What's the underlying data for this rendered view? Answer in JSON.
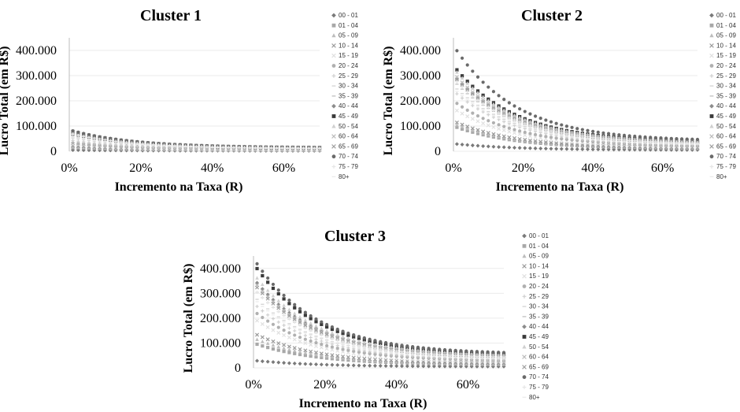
{
  "chart_data": [
    {
      "type": "scatter",
      "title": "Cluster 1",
      "xlabel": "Incremento na Taxa (R)",
      "ylabel": "Lucro Total (em R$)",
      "x_ticks": [
        "0%",
        "20%",
        "40%",
        "60%"
      ],
      "y_ticks": [
        "0",
        "100.000",
        "200.000",
        "300.000",
        "400.000"
      ],
      "xlim": [
        0,
        0.7
      ],
      "ylim": [
        0,
        450000
      ],
      "grid": "horizontal",
      "legend_position": "right",
      "series": [
        {
          "name": "00 - 01",
          "start": 5000,
          "k": 2.6,
          "end": 2000,
          "color": "#7a7a7a",
          "marker": "diamond"
        },
        {
          "name": "01 - 04",
          "start": 15000,
          "k": 2.6,
          "end": 4000,
          "color": "#a8a8a8",
          "marker": "square"
        },
        {
          "name": "05 - 09",
          "start": 18000,
          "k": 2.6,
          "end": 4500,
          "color": "#bdbdbd",
          "marker": "triangle"
        },
        {
          "name": "10 - 14",
          "start": 22000,
          "k": 2.6,
          "end": 5000,
          "color": "#9a9a9a",
          "marker": "x"
        },
        {
          "name": "15 - 19",
          "start": 30000,
          "k": 2.6,
          "end": 6000,
          "color": "#e0e0e0",
          "marker": "x"
        },
        {
          "name": "20 - 24",
          "start": 35000,
          "k": 2.6,
          "end": 7000,
          "color": "#b0b0b0",
          "marker": "circle"
        },
        {
          "name": "25 - 29",
          "start": 45000,
          "k": 2.6,
          "end": 8000,
          "color": "#cfcfcf",
          "marker": "plus"
        },
        {
          "name": "30 - 34",
          "start": 55000,
          "k": 2.6,
          "end": 9000,
          "color": "#d6d6d6",
          "marker": "dash"
        },
        {
          "name": "35 - 39",
          "start": 62000,
          "k": 2.6,
          "end": 10000,
          "color": "#c4c4c4",
          "marker": "dash"
        },
        {
          "name": "40 - 44",
          "start": 68000,
          "k": 2.6,
          "end": 11000,
          "color": "#8c8c8c",
          "marker": "diamond"
        },
        {
          "name": "45 - 49",
          "start": 75000,
          "k": 2.6,
          "end": 12000,
          "color": "#3a3a3a",
          "marker": "square"
        },
        {
          "name": "50 - 54",
          "start": 78000,
          "k": 2.6,
          "end": 12500,
          "color": "#d0d0d0",
          "marker": "triangle"
        },
        {
          "name": "60 - 64",
          "start": 80000,
          "k": 2.6,
          "end": 13000,
          "color": "#bababa",
          "marker": "x"
        },
        {
          "name": "65 - 69",
          "start": 82000,
          "k": 2.6,
          "end": 13500,
          "color": "#9e9e9e",
          "marker": "x"
        },
        {
          "name": "70 - 74",
          "start": 85000,
          "k": 2.6,
          "end": 14000,
          "color": "#6a6a6a",
          "marker": "circle"
        },
        {
          "name": "75 - 79",
          "start": 70000,
          "k": 2.6,
          "end": 11500,
          "color": "#e6e6e6",
          "marker": "plus"
        },
        {
          "name": "80+",
          "start": 60000,
          "k": 2.6,
          "end": 10000,
          "color": "#ececec",
          "marker": "dash"
        }
      ]
    },
    {
      "type": "scatter",
      "title": "Cluster 2",
      "xlabel": "Incremento na Taxa (R)",
      "ylabel": "Lucro Total (em R$)",
      "x_ticks": [
        "0%",
        "20%",
        "40%",
        "60%"
      ],
      "y_ticks": [
        "0",
        "100.000",
        "200.000",
        "300.000",
        "400.000"
      ],
      "xlim": [
        0,
        0.7
      ],
      "ylim": [
        0,
        450000
      ],
      "grid": "horizontal",
      "legend_position": "right",
      "series": [
        {
          "name": "00 - 01",
          "start": 30000,
          "k": 2.6,
          "end": 5000,
          "color": "#7a7a7a",
          "marker": "diamond"
        },
        {
          "name": "01 - 04",
          "start": 100000,
          "k": 2.6,
          "end": 10000,
          "color": "#a8a8a8",
          "marker": "square"
        },
        {
          "name": "05 - 09",
          "start": 110000,
          "k": 2.6,
          "end": 11000,
          "color": "#bdbdbd",
          "marker": "triangle"
        },
        {
          "name": "10 - 14",
          "start": 120000,
          "k": 2.6,
          "end": 12000,
          "color": "#9a9a9a",
          "marker": "x"
        },
        {
          "name": "15 - 19",
          "start": 170000,
          "k": 2.6,
          "end": 16000,
          "color": "#e0e0e0",
          "marker": "x"
        },
        {
          "name": "20 - 24",
          "start": 200000,
          "k": 2.6,
          "end": 19000,
          "color": "#b0b0b0",
          "marker": "circle"
        },
        {
          "name": "25 - 29",
          "start": 240000,
          "k": 2.6,
          "end": 22000,
          "color": "#cfcfcf",
          "marker": "plus"
        },
        {
          "name": "30 - 34",
          "start": 260000,
          "k": 2.6,
          "end": 25000,
          "color": "#d6d6d6",
          "marker": "dash"
        },
        {
          "name": "35 - 39",
          "start": 280000,
          "k": 2.6,
          "end": 27000,
          "color": "#c4c4c4",
          "marker": "dash"
        },
        {
          "name": "40 - 44",
          "start": 300000,
          "k": 2.6,
          "end": 30000,
          "color": "#8c8c8c",
          "marker": "diamond"
        },
        {
          "name": "45 - 49",
          "start": 340000,
          "k": 2.6,
          "end": 34000,
          "color": "#3a3a3a",
          "marker": "square"
        },
        {
          "name": "50 - 54",
          "start": 330000,
          "k": 2.6,
          "end": 33000,
          "color": "#d0d0d0",
          "marker": "triangle"
        },
        {
          "name": "60 - 64",
          "start": 310000,
          "k": 2.6,
          "end": 31000,
          "color": "#bababa",
          "marker": "x"
        },
        {
          "name": "65 - 69",
          "start": 300000,
          "k": 2.6,
          "end": 30000,
          "color": "#9e9e9e",
          "marker": "x"
        },
        {
          "name": "70 - 74",
          "start": 420000,
          "k": 2.6,
          "end": 40000,
          "color": "#6a6a6a",
          "marker": "circle"
        },
        {
          "name": "75 - 79",
          "start": 290000,
          "k": 2.6,
          "end": 28000,
          "color": "#e6e6e6",
          "marker": "plus"
        },
        {
          "name": "80+",
          "start": 250000,
          "k": 2.6,
          "end": 24000,
          "color": "#ececec",
          "marker": "dash"
        }
      ]
    },
    {
      "type": "scatter",
      "title": "Cluster 3",
      "xlabel": "Incremento na Taxa (R)",
      "ylabel": "Lucro Total (em R$)",
      "x_ticks": [
        "0%",
        "20%",
        "40%",
        "60%"
      ],
      "y_ticks": [
        "0",
        "100.000",
        "200.000",
        "300.000",
        "400.000"
      ],
      "xlim": [
        0,
        0.7
      ],
      "ylim": [
        0,
        450000
      ],
      "grid": "horizontal",
      "legend_position": "right",
      "series": [
        {
          "name": "00 - 01",
          "start": 30000,
          "k": 2.6,
          "end": 5000,
          "color": "#7a7a7a",
          "marker": "diamond"
        },
        {
          "name": "01 - 04",
          "start": 100000,
          "k": 2.6,
          "end": 12000,
          "color": "#a8a8a8",
          "marker": "square"
        },
        {
          "name": "05 - 09",
          "start": 120000,
          "k": 2.6,
          "end": 14000,
          "color": "#bdbdbd",
          "marker": "triangle"
        },
        {
          "name": "10 - 14",
          "start": 140000,
          "k": 2.6,
          "end": 16000,
          "color": "#9a9a9a",
          "marker": "x"
        },
        {
          "name": "15 - 19",
          "start": 200000,
          "k": 2.6,
          "end": 22000,
          "color": "#e0e0e0",
          "marker": "x"
        },
        {
          "name": "20 - 24",
          "start": 230000,
          "k": 2.6,
          "end": 26000,
          "color": "#b0b0b0",
          "marker": "circle"
        },
        {
          "name": "25 - 29",
          "start": 260000,
          "k": 2.6,
          "end": 30000,
          "color": "#cfcfcf",
          "marker": "plus"
        },
        {
          "name": "30 - 34",
          "start": 290000,
          "k": 2.6,
          "end": 33000,
          "color": "#d6d6d6",
          "marker": "dash"
        },
        {
          "name": "35 - 39",
          "start": 320000,
          "k": 2.6,
          "end": 36000,
          "color": "#c4c4c4",
          "marker": "dash"
        },
        {
          "name": "40 - 44",
          "start": 360000,
          "k": 2.6,
          "end": 42000,
          "color": "#8c8c8c",
          "marker": "diamond"
        },
        {
          "name": "45 - 49",
          "start": 420000,
          "k": 2.6,
          "end": 50000,
          "color": "#3a3a3a",
          "marker": "square"
        },
        {
          "name": "50 - 54",
          "start": 380000,
          "k": 2.6,
          "end": 46000,
          "color": "#d0d0d0",
          "marker": "triangle"
        },
        {
          "name": "60 - 64",
          "start": 350000,
          "k": 2.6,
          "end": 42000,
          "color": "#bababa",
          "marker": "x"
        },
        {
          "name": "65 - 69",
          "start": 340000,
          "k": 2.6,
          "end": 40000,
          "color": "#9e9e9e",
          "marker": "x"
        },
        {
          "name": "70 - 74",
          "start": 440000,
          "k": 2.6,
          "end": 55000,
          "color": "#6a6a6a",
          "marker": "circle"
        },
        {
          "name": "75 - 79",
          "start": 320000,
          "k": 2.6,
          "end": 38000,
          "color": "#e6e6e6",
          "marker": "plus"
        },
        {
          "name": "80+",
          "start": 280000,
          "k": 2.6,
          "end": 33000,
          "color": "#ececec",
          "marker": "dash"
        }
      ]
    }
  ]
}
